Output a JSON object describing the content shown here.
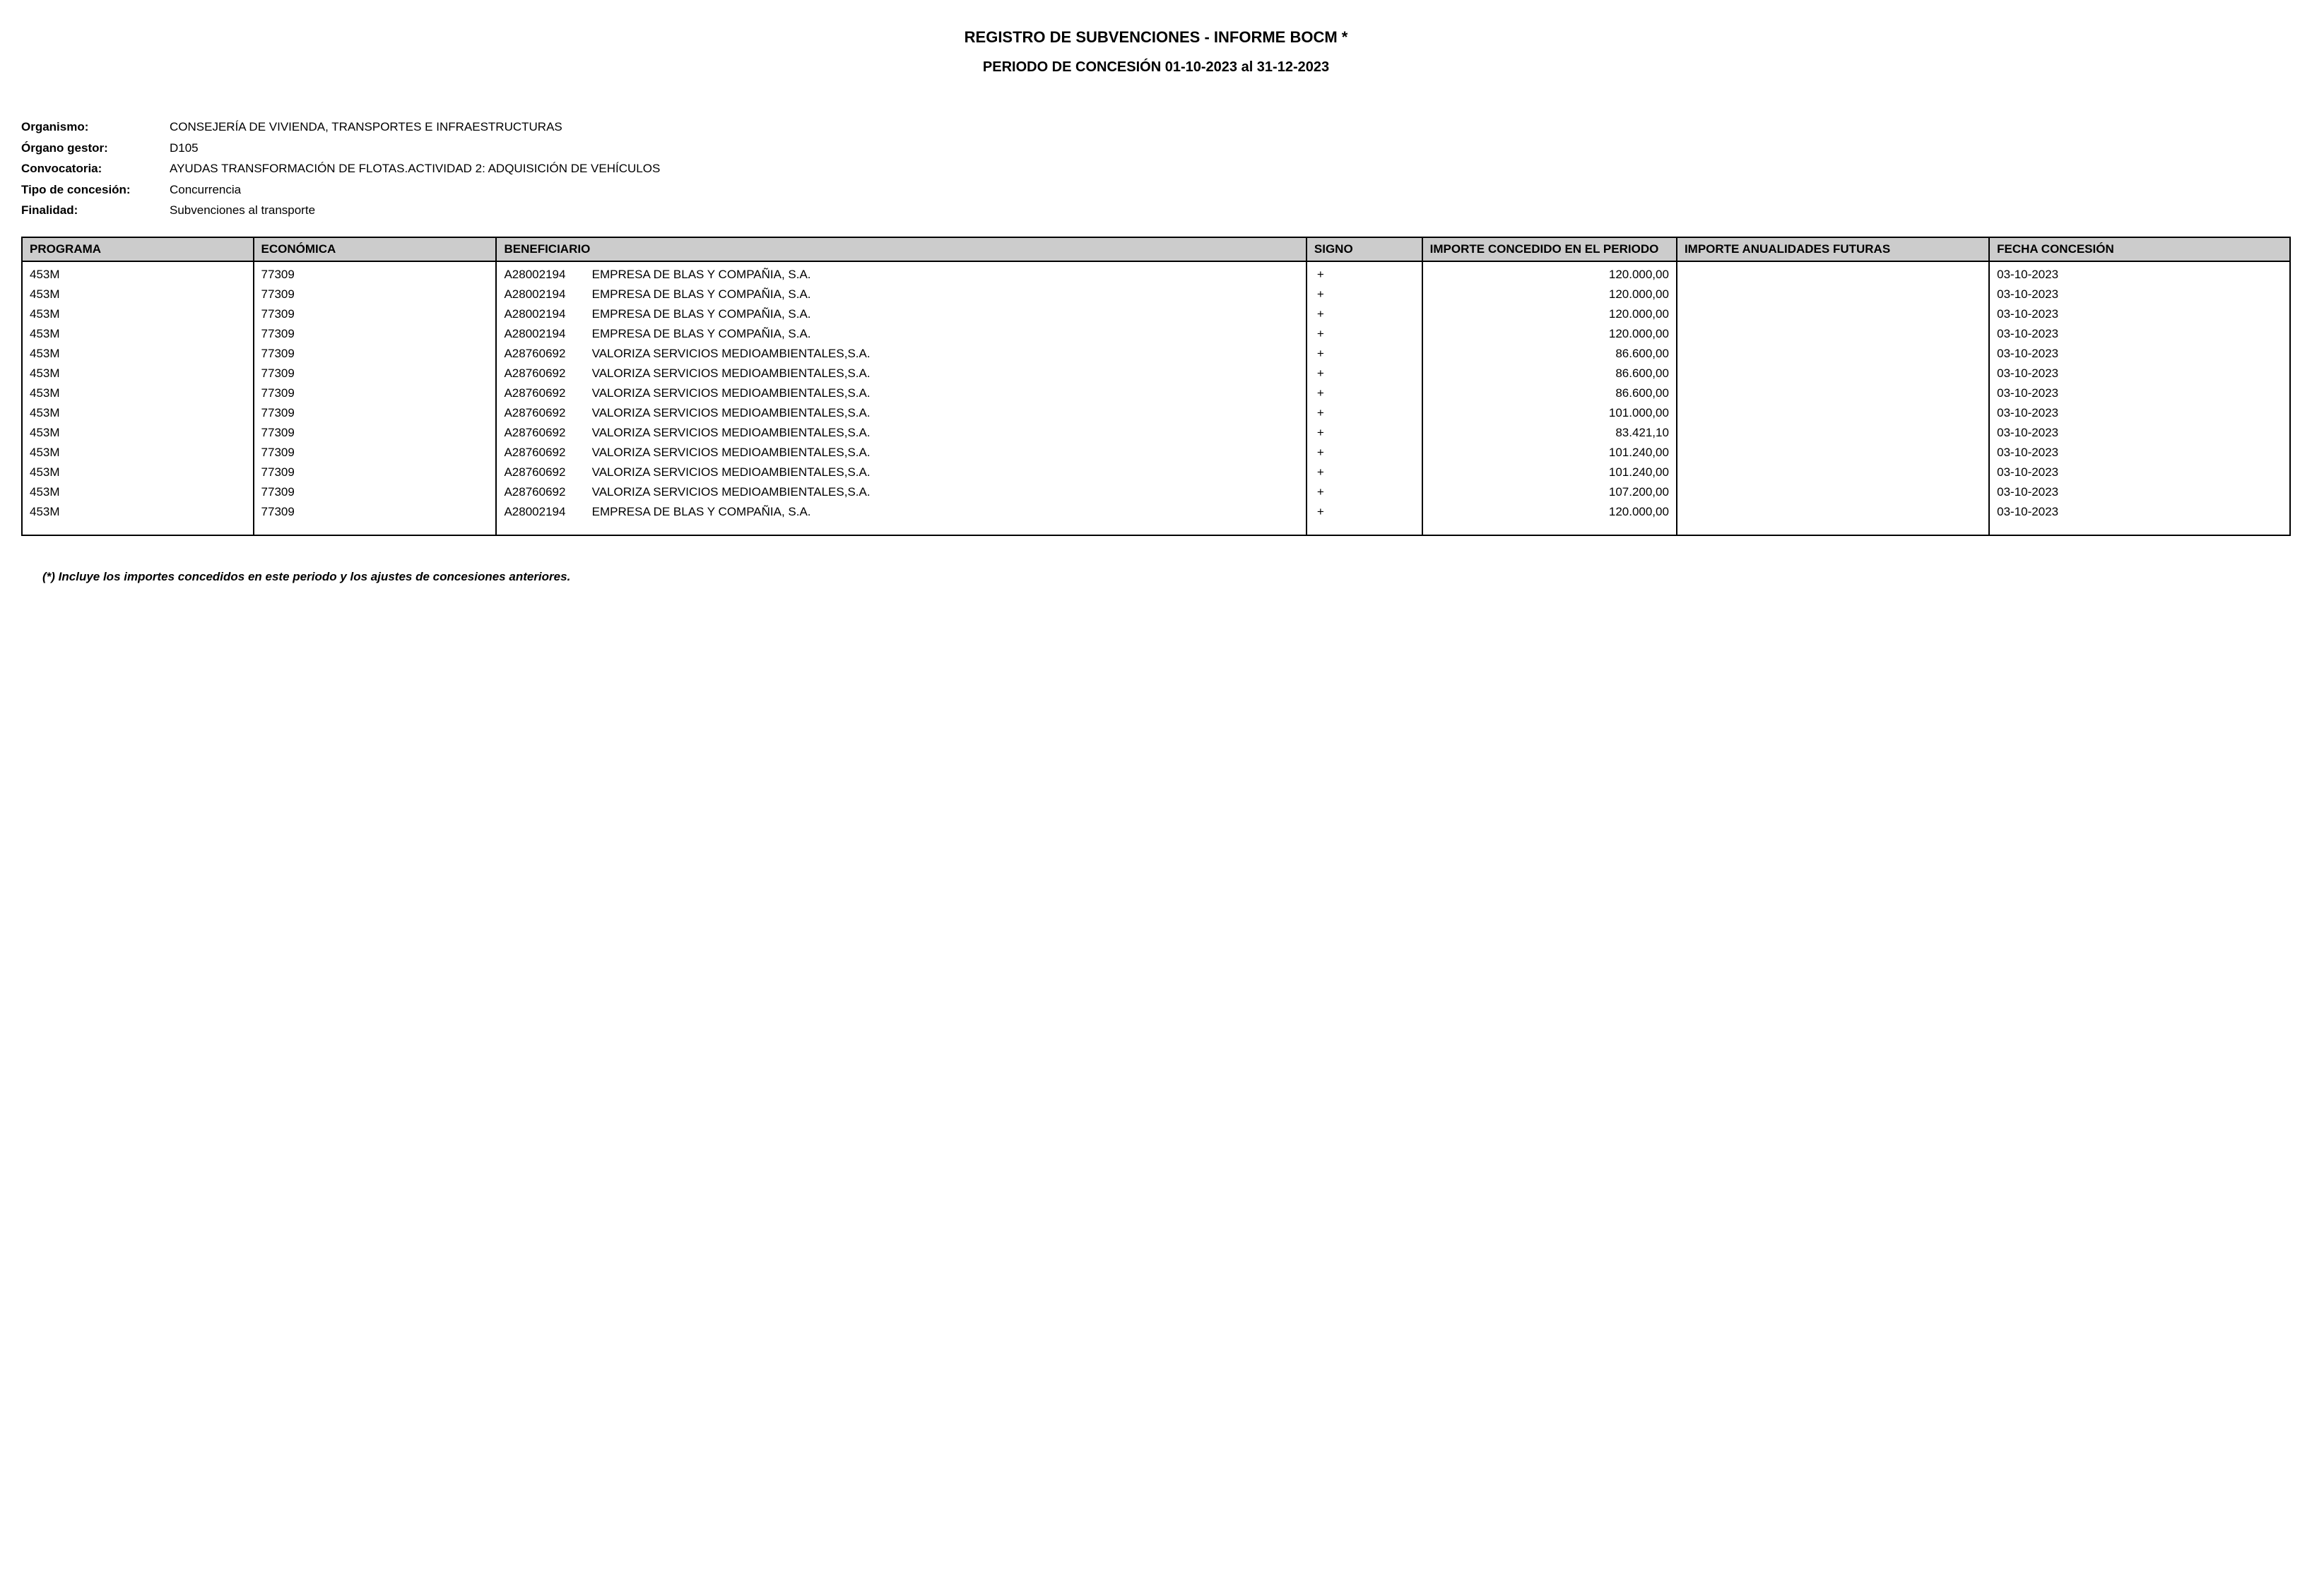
{
  "header": {
    "title": "REGISTRO DE SUBVENCIONES - INFORME BOCM   *",
    "subtitle": "PERIODO DE CONCESIÓN 01-10-2023 al 31-12-2023"
  },
  "meta": {
    "fields": [
      {
        "label": "Organismo:",
        "value": "CONSEJERÍA DE VIVIENDA, TRANSPORTES E INFRAESTRUCTURAS"
      },
      {
        "label": "Órgano gestor:",
        "value": "D105"
      },
      {
        "label": "Convocatoria:",
        "value": "AYUDAS TRANSFORMACIÓN DE FLOTAS.ACTIVIDAD 2: ADQUISICIÓN DE VEHÍCULOS"
      },
      {
        "label": "Tipo de concesión:",
        "value": "Concurrencia"
      },
      {
        "label": "Finalidad:",
        "value": "Subvenciones al transporte"
      }
    ]
  },
  "table": {
    "columns": [
      "PROGRAMA",
      "ECONÓMICA",
      "BENEFICIARIO",
      "SIGNO",
      "IMPORTE CONCEDIDO EN EL PERIODO",
      "IMPORTE ANUALIDADES FUTURAS",
      "FECHA CONCESIÓN"
    ],
    "rows": [
      {
        "programa": "453M",
        "economica": "77309",
        "benef_code": "A28002194",
        "benef_name": "EMPRESA DE BLAS Y COMPAÑIA, S.A.",
        "signo": "+",
        "importe": "120.000,00",
        "futuras": "",
        "fecha": "03-10-2023"
      },
      {
        "programa": "453M",
        "economica": "77309",
        "benef_code": "A28002194",
        "benef_name": "EMPRESA DE BLAS Y COMPAÑIA, S.A.",
        "signo": "+",
        "importe": "120.000,00",
        "futuras": "",
        "fecha": "03-10-2023"
      },
      {
        "programa": "453M",
        "economica": "77309",
        "benef_code": "A28002194",
        "benef_name": "EMPRESA DE BLAS Y COMPAÑIA, S.A.",
        "signo": "+",
        "importe": "120.000,00",
        "futuras": "",
        "fecha": "03-10-2023"
      },
      {
        "programa": "453M",
        "economica": "77309",
        "benef_code": "A28002194",
        "benef_name": "EMPRESA DE BLAS Y COMPAÑIA, S.A.",
        "signo": "+",
        "importe": "120.000,00",
        "futuras": "",
        "fecha": "03-10-2023"
      },
      {
        "programa": "453M",
        "economica": "77309",
        "benef_code": "A28760692",
        "benef_name": "VALORIZA SERVICIOS MEDIOAMBIENTALES,S.A.",
        "signo": "+",
        "importe": "86.600,00",
        "futuras": "",
        "fecha": "03-10-2023"
      },
      {
        "programa": "453M",
        "economica": "77309",
        "benef_code": "A28760692",
        "benef_name": "VALORIZA SERVICIOS MEDIOAMBIENTALES,S.A.",
        "signo": "+",
        "importe": "86.600,00",
        "futuras": "",
        "fecha": "03-10-2023"
      },
      {
        "programa": "453M",
        "economica": "77309",
        "benef_code": "A28760692",
        "benef_name": "VALORIZA SERVICIOS MEDIOAMBIENTALES,S.A.",
        "signo": "+",
        "importe": "86.600,00",
        "futuras": "",
        "fecha": "03-10-2023"
      },
      {
        "programa": "453M",
        "economica": "77309",
        "benef_code": "A28760692",
        "benef_name": "VALORIZA SERVICIOS MEDIOAMBIENTALES,S.A.",
        "signo": "+",
        "importe": "101.000,00",
        "futuras": "",
        "fecha": "03-10-2023"
      },
      {
        "programa": "453M",
        "economica": "77309",
        "benef_code": "A28760692",
        "benef_name": "VALORIZA SERVICIOS MEDIOAMBIENTALES,S.A.",
        "signo": "+",
        "importe": "83.421,10",
        "futuras": "",
        "fecha": "03-10-2023"
      },
      {
        "programa": "453M",
        "economica": "77309",
        "benef_code": "A28760692",
        "benef_name": "VALORIZA SERVICIOS MEDIOAMBIENTALES,S.A.",
        "signo": "+",
        "importe": "101.240,00",
        "futuras": "",
        "fecha": "03-10-2023"
      },
      {
        "programa": "453M",
        "economica": "77309",
        "benef_code": "A28760692",
        "benef_name": "VALORIZA SERVICIOS MEDIOAMBIENTALES,S.A.",
        "signo": "+",
        "importe": "101.240,00",
        "futuras": "",
        "fecha": "03-10-2023"
      },
      {
        "programa": "453M",
        "economica": "77309",
        "benef_code": "A28760692",
        "benef_name": "VALORIZA SERVICIOS MEDIOAMBIENTALES,S.A.",
        "signo": "+",
        "importe": "107.200,00",
        "futuras": "",
        "fecha": "03-10-2023"
      },
      {
        "programa": "453M",
        "economica": "77309",
        "benef_code": "A28002194",
        "benef_name": "EMPRESA DE BLAS Y COMPAÑIA, S.A.",
        "signo": "+",
        "importe": "120.000,00",
        "futuras": "",
        "fecha": "03-10-2023"
      }
    ]
  },
  "footnote": "(*) Incluye los importes concedidos en este periodo y los ajustes de concesiones anteriores.",
  "style": {
    "background_color": "#ffffff",
    "text_color": "#000000",
    "header_bg": "#cccccc",
    "border_color": "#000000",
    "body_fontsize": 17,
    "title_fontsize": 22,
    "subtitle_fontsize": 20
  }
}
